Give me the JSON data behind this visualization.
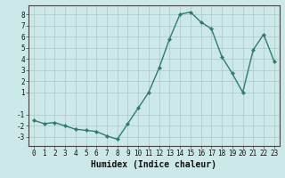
{
  "x": [
    0,
    1,
    2,
    3,
    4,
    5,
    6,
    7,
    8,
    9,
    10,
    11,
    12,
    13,
    14,
    15,
    16,
    17,
    18,
    19,
    20,
    21,
    22,
    23
  ],
  "y": [
    -1.5,
    -1.8,
    -1.7,
    -2.0,
    -2.3,
    -2.4,
    -2.5,
    -2.9,
    -3.2,
    -1.8,
    -0.4,
    1.0,
    3.2,
    5.8,
    8.0,
    8.2,
    7.3,
    6.7,
    4.2,
    2.7,
    1.0,
    4.8,
    6.2,
    3.8
  ],
  "line_color": "#2e7d6e",
  "marker": "D",
  "markersize": 2,
  "linewidth": 1.0,
  "xlabel": "Humidex (Indice chaleur)",
  "xlabel_fontsize": 7,
  "xlabel_fontweight": "bold",
  "ylim": [
    -3.8,
    8.8
  ],
  "xlim": [
    -0.5,
    23.5
  ],
  "yticks": [
    -3,
    -2,
    -1,
    1,
    2,
    3,
    4,
    5,
    6,
    7,
    8
  ],
  "xticks": [
    0,
    1,
    2,
    3,
    4,
    5,
    6,
    7,
    8,
    9,
    10,
    11,
    12,
    13,
    14,
    15,
    16,
    17,
    18,
    19,
    20,
    21,
    22,
    23
  ],
  "xtick_labels": [
    "0",
    "1",
    "2",
    "3",
    "4",
    "5",
    "6",
    "7",
    "8",
    "9",
    "10",
    "11",
    "12",
    "13",
    "14",
    "15",
    "16",
    "17",
    "18",
    "19",
    "20",
    "21",
    "22",
    "23"
  ],
  "bg_color": "#cce8e8",
  "grid_color": "#aac8c8",
  "tick_fontsize": 5.5,
  "fig_bg_color": "#cce8e8",
  "spine_color": "#444444"
}
